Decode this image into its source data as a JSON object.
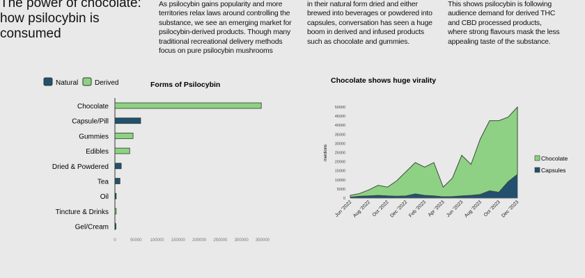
{
  "header": {
    "title_lines": [
      "The power of chocolate:",
      "how psilocybin is",
      "consumed"
    ],
    "col1_lines": [
      "As psilocybin gains popularity and more",
      "territories relax laws around controlling the",
      "substance, we see an emerging market for",
      "psilocybin-derived products. Though many",
      "traditional recreational delivery methods",
      "focus on pure psilocybin mushrooms"
    ],
    "col2_lines": [
      "in their natural form dried and either",
      "brewed into beverages or powdered into",
      "capsules, conversation has seen a huge",
      "boom in derived and infused products",
      "such as chocolate and gummies."
    ],
    "col3_lines": [
      "This shows psilocybin is following",
      "audience demand for derived THC",
      "and CBD processed products,",
      "where strong flavours mask the less",
      "appealing taste of  the substance."
    ]
  },
  "colors": {
    "natural": "#23506f",
    "derived": "#8fd184",
    "outline": "#2b3b2b"
  },
  "chart_data": [
    {
      "type": "bar",
      "orientation": "horizontal",
      "title": "Forms of Psilocybin",
      "legend": {
        "position": "top-left",
        "entries": [
          "Natural",
          "Derived"
        ]
      },
      "categories": [
        "Chocolate",
        "Capsule/Pill",
        "Gummies",
        "Edibles",
        "Dried & Powdered",
        "Tea",
        "Oil",
        "Tincture & Drinks",
        "Gel/Cream"
      ],
      "values": [
        347000,
        61000,
        43000,
        35000,
        15000,
        12000,
        3000,
        3000,
        2500
      ],
      "group": [
        "Derived",
        "Natural",
        "Derived",
        "Derived",
        "Natural",
        "Natural",
        "Natural",
        "Derived",
        "Natural"
      ],
      "xlim": [
        0,
        350000
      ],
      "xticks": [
        0,
        50000,
        100000,
        150000,
        200000,
        250000,
        300000,
        350000
      ],
      "xtick_labels": [
        "0",
        "50000",
        "100000",
        "150000",
        "200000",
        "250000",
        "300000",
        "350000"
      ]
    },
    {
      "type": "area",
      "stacked": true,
      "title": "Chocolate shows huge virality",
      "ylabel": "mentions",
      "legend": {
        "position": "right",
        "entries": [
          "Chocolate",
          "Capsules"
        ]
      },
      "x": [
        "Jun 2022",
        "Jul 2022",
        "Aug 2022",
        "Sep 2022",
        "Oct 2022",
        "Nov 2022",
        "Dec 2022",
        "Jan 2023",
        "Feb 2023",
        "Mar 2023",
        "Apr 2023",
        "May 2023",
        "Jun 2023",
        "Jul 2023",
        "Aug 2023",
        "Sep 2023",
        "Oct 2023",
        "Nov 2023",
        "Dec 2023"
      ],
      "xtick_labels": [
        "Jun '2022",
        "Aug '2022",
        "Oct '2022",
        "Dec '2022",
        "Feb '2023",
        "Apr '2023",
        "Jun '2023",
        "Aug '2023",
        "Oct '2023",
        "Dec '2023"
      ],
      "series": [
        {
          "name": "Capsules",
          "values": [
            500,
            1000,
            1200,
            1500,
            1200,
            1000,
            1200,
            2300,
            1500,
            1200,
            700,
            800,
            1200,
            1500,
            2000,
            4000,
            3200,
            9000,
            13000
          ]
        },
        {
          "name": "Chocolate",
          "values": [
            1000,
            1500,
            3300,
            5500,
            4800,
            8500,
            13300,
            17200,
            15500,
            18300,
            5300,
            10200,
            22300,
            17000,
            30500,
            38500,
            39300,
            35500,
            37000
          ]
        }
      ],
      "ylim": [
        0,
        50000
      ],
      "yticks": [
        0,
        5000,
        10000,
        15000,
        20000,
        25000,
        30000,
        35000,
        40000,
        45000,
        50000
      ],
      "ytick_labels": [
        "0",
        "5000",
        "10000",
        "15000",
        "20000",
        "25000",
        "30000",
        "35000",
        "40000",
        "45000",
        "50000"
      ]
    }
  ]
}
